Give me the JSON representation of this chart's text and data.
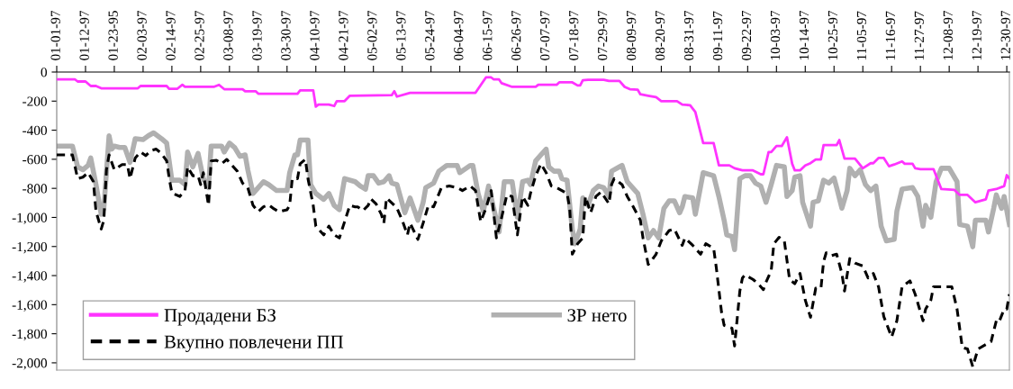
{
  "chart_data": {
    "type": "line",
    "xlim": [
      "1997-01-01",
      "1997-12-31"
    ],
    "ylim": [
      -2050,
      0
    ],
    "xticks": [
      {
        "value": "1997-01-01",
        "label": "01-01-97"
      },
      {
        "value": "1997-01-12",
        "label": "01-12-97"
      },
      {
        "value": "1997-01-23",
        "label": "01-23-95"
      },
      {
        "value": "1997-02-03",
        "label": "02-03-97"
      },
      {
        "value": "1997-02-14",
        "label": "02-14-97"
      },
      {
        "value": "1997-02-25",
        "label": "02-25-97"
      },
      {
        "value": "1997-03-08",
        "label": "03-08-97"
      },
      {
        "value": "1997-03-19",
        "label": "03-19-97"
      },
      {
        "value": "1997-03-30",
        "label": "03-30-97"
      },
      {
        "value": "1997-04-10",
        "label": "04-10-97"
      },
      {
        "value": "1997-04-21",
        "label": "04-21-97"
      },
      {
        "value": "1997-05-02",
        "label": "05-02-97"
      },
      {
        "value": "1997-05-13",
        "label": "05-13-97"
      },
      {
        "value": "1997-05-24",
        "label": "05-24-97"
      },
      {
        "value": "1997-06-04",
        "label": "06-04-97"
      },
      {
        "value": "1997-06-15",
        "label": "06-15-97"
      },
      {
        "value": "1997-06-26",
        "label": "06-26-97"
      },
      {
        "value": "1997-07-07",
        "label": "07-07-97"
      },
      {
        "value": "1997-07-18",
        "label": "07-18-97"
      },
      {
        "value": "1997-07-29",
        "label": "07-29-97"
      },
      {
        "value": "1997-08-09",
        "label": "08-09-97"
      },
      {
        "value": "1997-08-20",
        "label": "08-20-97"
      },
      {
        "value": "1997-08-31",
        "label": "08-31-97"
      },
      {
        "value": "1997-09-11",
        "label": "09-11-97"
      },
      {
        "value": "1997-09-22",
        "label": "09-22-97"
      },
      {
        "value": "1997-10-03",
        "label": "10-03-97"
      },
      {
        "value": "1997-10-14",
        "label": "10-14-97"
      },
      {
        "value": "1997-10-25",
        "label": "10-25-97"
      },
      {
        "value": "1997-11-05",
        "label": "11-05-97"
      },
      {
        "value": "1997-11-16",
        "label": "11-16-97"
      },
      {
        "value": "1997-11-27",
        "label": "11-27-97"
      },
      {
        "value": "1997-12-08",
        "label": "12-08-97"
      },
      {
        "value": "1997-12-19",
        "label": "12-19-97"
      },
      {
        "value": "1997-12-30",
        "label": "12-30-97"
      }
    ],
    "yticks": [
      0,
      -200,
      -400,
      -600,
      -800,
      {
        "value": -1000,
        "label": "-1,000"
      },
      {
        "value": -1200,
        "label": "-1,200"
      },
      {
        "value": -1400,
        "label": "-1,400"
      },
      {
        "value": -1600,
        "label": "-1,600"
      },
      {
        "value": -1800,
        "label": "-1,800"
      },
      {
        "value": -2000,
        "label": "-2,000"
      }
    ],
    "grid": false,
    "legend": "bottom left",
    "marker": "none",
    "series": [
      {
        "name": "Продадени БЗ",
        "color": "#ff33ff",
        "line_style": "solid",
        "x": [
          "1997-01-01",
          "1997-01-08",
          "1997-01-09",
          "1997-01-12",
          "1997-01-14",
          "1997-01-16",
          "1997-01-18",
          "1997-02-01",
          "1997-02-02",
          "1997-02-12",
          "1997-02-13",
          "1997-02-16",
          "1997-02-18",
          "1997-02-19",
          "1997-03-02",
          "1997-03-04",
          "1997-03-06",
          "1997-03-13",
          "1997-03-14",
          "1997-03-18",
          "1997-03-19",
          "1997-04-03",
          "1997-04-04",
          "1997-04-09",
          "1997-04-10",
          "1997-04-11",
          "1997-04-15",
          "1997-04-17",
          "1997-04-18",
          "1997-04-21",
          "1997-04-23",
          "1997-05-09",
          "1997-05-10",
          "1997-05-11",
          "1997-05-16",
          "1997-06-10",
          "1997-06-14",
          "1997-06-16",
          "1997-06-17",
          "1997-06-19",
          "1997-06-20",
          "1997-06-24",
          "1997-07-03",
          "1997-07-04",
          "1997-07-11",
          "1997-07-12",
          "1997-07-17",
          "1997-07-19",
          "1997-07-20",
          "1997-07-21",
          "1997-07-23",
          "1997-07-29",
          "1997-07-31",
          "1997-08-04",
          "1997-08-06",
          "1997-08-08",
          "1997-08-11",
          "1997-08-12",
          "1997-08-15",
          "1997-08-18",
          "1997-08-20",
          "1997-08-26",
          "1997-08-28",
          "1997-08-31",
          "1997-09-02",
          "1997-09-05",
          "1997-09-09",
          "1997-09-11",
          "1997-09-15",
          "1997-09-17",
          "1997-09-20",
          "1997-09-24",
          "1997-09-27",
          "1997-09-28",
          "1997-09-30",
          "1997-10-01",
          "1997-10-03",
          "1997-10-05",
          "1997-10-07",
          "1997-10-09",
          "1997-10-10",
          "1997-10-12",
          "1997-10-14",
          "1997-10-16",
          "1997-10-18",
          "1997-10-20",
          "1997-10-21",
          "1997-10-26",
          "1997-10-27",
          "1997-10-29",
          "1997-11-02",
          "1997-11-05",
          "1997-11-08",
          "1997-11-09",
          "1997-11-11",
          "1997-11-13",
          "1997-11-15",
          "1997-11-17",
          "1997-11-20",
          "1997-11-21",
          "1997-11-24",
          "1997-11-25",
          "1997-11-27",
          "1997-12-02",
          "1997-12-05",
          "1997-12-10",
          "1997-12-12",
          "1997-12-15",
          "1997-12-18",
          "1997-12-22",
          "1997-12-23",
          "1997-12-26",
          "1997-12-29",
          "1997-12-30",
          "1997-12-31"
        ],
        "values": [
          -51,
          -51,
          -65,
          -65,
          -96,
          -96,
          -112,
          -112,
          -96,
          -96,
          -116,
          -116,
          -88,
          -102,
          -102,
          -88,
          -118,
          -118,
          -132,
          -132,
          -149,
          -149,
          -126,
          -126,
          -238,
          -224,
          -224,
          -234,
          -200,
          -200,
          -163,
          -159,
          -132,
          -169,
          -143,
          -143,
          -37,
          -37,
          -51,
          -51,
          -77,
          -102,
          -102,
          -88,
          -88,
          -71,
          -71,
          -92,
          -92,
          -57,
          -53,
          -53,
          -61,
          -61,
          -102,
          -118,
          -122,
          -153,
          -163,
          -173,
          -200,
          -200,
          -224,
          -228,
          -275,
          -489,
          -489,
          -642,
          -642,
          -662,
          -676,
          -676,
          -703,
          -703,
          -550,
          -550,
          -509,
          -509,
          -448,
          -631,
          -676,
          -676,
          -642,
          -627,
          -601,
          -601,
          -503,
          -503,
          -468,
          -595,
          -595,
          -662,
          -627,
          -627,
          -591,
          -591,
          -648,
          -636,
          -615,
          -631,
          -631,
          -662,
          -668,
          -668,
          -805,
          -811,
          -845,
          -845,
          -896,
          -876,
          -815,
          -805,
          -784,
          -709,
          -733
        ]
      },
      {
        "name": "ЗР нето",
        "color": "#b0b0b0",
        "line_style": "solid",
        "x": [
          "1997-01-01",
          "1997-01-07",
          "1997-01-09",
          "1997-01-11",
          "1997-01-13",
          "1997-01-14",
          "1997-01-16",
          "1997-01-18",
          "1997-01-19",
          "1997-01-21",
          "1997-01-22",
          "1997-01-23",
          "1997-01-25",
          "1997-01-27",
          "1997-01-29",
          "1997-01-31",
          "1997-02-03",
          "1997-02-05",
          "1997-02-07",
          "1997-02-10",
          "1997-02-12",
          "1997-02-14",
          "1997-02-17",
          "1997-02-19",
          "1997-02-20",
          "1997-02-22",
          "1997-02-24",
          "1997-02-26",
          "1997-02-28",
          "1997-03-01",
          "1997-03-05",
          "1997-03-06",
          "1997-03-08",
          "1997-03-10",
          "1997-03-12",
          "1997-03-14",
          "1997-03-15",
          "1997-03-17",
          "1997-03-18",
          "1997-03-21",
          "1997-03-23",
          "1997-03-26",
          "1997-03-30",
          "1997-03-31",
          "1997-04-02",
          "1997-04-03",
          "1997-04-04",
          "1997-04-07",
          "1997-04-08",
          "1997-04-10",
          "1997-04-13",
          "1997-04-15",
          "1997-04-17",
          "1997-04-19",
          "1997-04-20",
          "1997-04-21",
          "1997-04-25",
          "1997-04-27",
          "1997-04-29",
          "1997-04-30",
          "1997-05-02",
          "1997-05-04",
          "1997-05-06",
          "1997-05-08",
          "1997-05-09",
          "1997-05-11",
          "1997-05-14",
          "1997-05-16",
          "1997-05-19",
          "1997-05-21",
          "1997-05-22",
          "1997-05-25",
          "1997-05-27",
          "1997-05-30",
          "1997-06-03",
          "1997-06-04",
          "1997-06-08",
          "1997-06-09",
          "1997-06-11",
          "1997-06-13",
          "1997-06-15",
          "1997-06-18",
          "1997-06-19",
          "1997-06-21",
          "1997-06-24",
          "1997-06-26",
          "1997-06-28",
          "1997-06-30",
          "1997-07-01",
          "1997-07-03",
          "1997-07-05",
          "1997-07-07",
          "1997-07-08",
          "1997-07-10",
          "1997-07-12",
          "1997-07-13",
          "1997-07-15",
          "1997-07-17",
          "1997-07-18",
          "1997-07-20",
          "1997-07-21",
          "1997-07-23",
          "1997-07-25",
          "1997-07-27",
          "1997-07-29",
          "1997-07-31",
          "1997-08-01",
          "1997-08-04",
          "1997-08-05",
          "1997-08-07",
          "1997-08-09",
          "1997-08-11",
          "1997-08-13",
          "1997-08-15",
          "1997-08-17",
          "1997-08-19",
          "1997-08-21",
          "1997-08-23",
          "1997-08-25",
          "1997-08-27",
          "1997-08-28",
          "1997-08-29",
          "1997-09-01",
          "1997-09-02",
          "1997-09-05",
          "1997-09-09",
          "1997-09-11",
          "1997-09-13",
          "1997-09-14",
          "1997-09-16",
          "1997-09-17",
          "1997-09-19",
          "1997-09-21",
          "1997-09-23",
          "1997-09-25",
          "1997-09-27",
          "1997-09-29",
          "1997-10-01",
          "1997-10-03",
          "1997-10-06",
          "1997-10-07",
          "1997-10-09",
          "1997-10-10",
          "1997-10-12",
          "1997-10-13",
          "1997-10-16",
          "1997-10-17",
          "1997-10-19",
          "1997-10-21",
          "1997-10-23",
          "1997-10-25",
          "1997-10-26",
          "1997-10-28",
          "1997-10-30",
          "1997-10-31",
          "1997-11-02",
          "1997-11-04",
          "1997-11-06",
          "1997-11-08",
          "1997-11-10",
          "1997-11-12",
          "1997-11-14",
          "1997-11-17",
          "1997-11-18",
          "1997-11-20",
          "1997-11-24",
          "1997-11-26",
          "1997-11-28",
          "1997-11-29",
          "1997-12-01",
          "1997-12-03",
          "1997-12-05",
          "1997-12-08",
          "1997-12-11",
          "1997-12-12",
          "1997-12-15",
          "1997-12-17",
          "1997-12-18",
          "1997-12-22",
          "1997-12-23",
          "1997-12-25",
          "1997-12-26",
          "1997-12-28",
          "1997-12-29",
          "1997-12-31"
        ],
        "values": [
          -509,
          -509,
          -652,
          -672,
          -642,
          -591,
          -774,
          -978,
          -937,
          -438,
          -530,
          -509,
          -519,
          -519,
          -621,
          -458,
          -464,
          -438,
          -418,
          -458,
          -489,
          -744,
          -744,
          -774,
          -550,
          -652,
          -560,
          -733,
          -795,
          -509,
          -509,
          -550,
          -489,
          -519,
          -580,
          -570,
          -672,
          -835,
          -815,
          -754,
          -774,
          -815,
          -815,
          -692,
          -570,
          -570,
          -468,
          -468,
          -774,
          -835,
          -876,
          -835,
          -917,
          -947,
          -835,
          -733,
          -754,
          -784,
          -805,
          -713,
          -713,
          -764,
          -754,
          -713,
          -764,
          -774,
          -968,
          -866,
          -1019,
          -896,
          -795,
          -764,
          -682,
          -642,
          -642,
          -692,
          -642,
          -642,
          -835,
          -958,
          -784,
          -1019,
          -1100,
          -754,
          -754,
          -999,
          -754,
          -744,
          -774,
          -611,
          -570,
          -530,
          -652,
          -682,
          -682,
          -733,
          -744,
          -1080,
          -1181,
          -1080,
          -866,
          -917,
          -815,
          -784,
          -795,
          -856,
          -682,
          -652,
          -642,
          -754,
          -795,
          -835,
          -978,
          -1141,
          -1090,
          -1141,
          -937,
          -886,
          -886,
          -968,
          -927,
          -856,
          -866,
          -978,
          -692,
          -713,
          -856,
          -1019,
          -1120,
          -1131,
          -1222,
          -733,
          -713,
          -713,
          -764,
          -784,
          -896,
          -774,
          -642,
          -652,
          -856,
          -815,
          -723,
          -713,
          -896,
          -1060,
          -896,
          -886,
          -744,
          -764,
          -729,
          -795,
          -937,
          -815,
          -662,
          -713,
          -672,
          -774,
          -815,
          -784,
          -1060,
          -1161,
          -1151,
          -958,
          -805,
          -795,
          -856,
          -1060,
          -917,
          -999,
          -754,
          -662,
          -662,
          -754,
          -1049,
          -1060,
          -1202,
          -1019,
          -1019,
          -1100,
          -937,
          -845,
          -937,
          -856,
          -1049
        ]
      },
      {
        "name": "Вкупно повлечени ПП",
        "color": "#000000",
        "line_style": "dashed",
        "x": [
          "1997-01-01",
          "1997-01-07",
          "1997-01-09",
          "1997-01-11",
          "1997-01-13",
          "1997-01-15",
          "1997-01-16",
          "1997-01-18",
          "1997-01-19",
          "1997-01-20",
          "1997-01-21",
          "1997-01-23",
          "1997-01-26",
          "1997-01-28",
          "1997-01-29",
          "1997-01-31",
          "1997-02-02",
          "1997-02-04",
          "1997-02-06",
          "1997-02-08",
          "1997-02-10",
          "1997-02-12",
          "1997-02-13",
          "1997-02-14",
          "1997-02-17",
          "1997-02-19",
          "1997-02-20",
          "1997-02-22",
          "1997-02-24",
          "1997-02-25",
          "1997-02-26",
          "1997-02-28",
          "1997-03-01",
          "1997-03-03",
          "1997-03-05",
          "1997-03-07",
          "1997-03-09",
          "1997-03-11",
          "1997-03-13",
          "1997-03-15",
          "1997-03-17",
          "1997-03-19",
          "1997-03-21",
          "1997-03-23",
          "1997-03-25",
          "1997-03-27",
          "1997-03-30",
          "1997-03-31",
          "1997-04-01",
          "1997-04-03",
          "1997-04-04",
          "1997-04-06",
          "1997-04-07",
          "1997-04-09",
          "1997-04-10",
          "1997-04-13",
          "1997-04-15",
          "1997-04-17",
          "1997-04-19",
          "1997-04-21",
          "1997-04-23",
          "1997-04-25",
          "1997-04-26",
          "1997-04-28",
          "1997-04-30",
          "1997-05-01",
          "1997-05-03",
          "1997-05-05",
          "1997-05-06",
          "1997-05-07",
          "1997-05-10",
          "1997-05-11",
          "1997-05-13",
          "1997-05-15",
          "1997-05-16",
          "1997-05-19",
          "1997-05-21",
          "1997-05-23",
          "1997-05-25",
          "1997-05-28",
          "1997-05-31",
          "1997-06-03",
          "1997-06-05",
          "1997-06-08",
          "1997-06-10",
          "1997-06-12",
          "1997-06-14",
          "1997-06-16",
          "1997-06-18",
          "1997-06-20",
          "1997-06-22",
          "1997-06-24",
          "1997-06-26",
          "1997-06-28",
          "1997-06-30",
          "1997-07-01",
          "1997-07-03",
          "1997-07-05",
          "1997-07-07",
          "1997-07-09",
          "1997-07-11",
          "1997-07-15",
          "1997-07-16",
          "1997-07-17",
          "1997-07-19",
          "1997-07-21",
          "1997-07-22",
          "1997-07-24",
          "1997-07-26",
          "1997-07-28",
          "1997-07-31",
          "1997-08-01",
          "1997-08-02",
          "1997-08-05",
          "1997-08-07",
          "1997-08-09",
          "1997-08-12",
          "1997-08-13",
          "1997-08-15",
          "1997-08-16",
          "1997-08-18",
          "1997-08-20",
          "1997-08-23",
          "1997-08-25",
          "1997-08-28",
          "1997-08-29",
          "1997-09-01",
          "1997-09-04",
          "1997-09-06",
          "1997-09-09",
          "1997-09-10",
          "1997-09-12",
          "1997-09-13",
          "1997-09-16",
          "1997-09-17",
          "1997-09-19",
          "1997-09-20",
          "1997-09-21",
          "1997-09-24",
          "1997-09-26",
          "1997-09-28",
          "1997-09-29",
          "1997-10-01",
          "1997-10-02",
          "1997-10-04",
          "1997-10-06",
          "1997-10-08",
          "1997-10-10",
          "1997-10-12",
          "1997-10-14",
          "1997-10-16",
          "1997-10-18",
          "1997-10-20",
          "1997-10-21",
          "1997-10-22",
          "1997-10-24",
          "1997-10-26",
          "1997-10-28",
          "1997-10-29",
          "1997-10-31",
          "1997-11-02",
          "1997-11-05",
          "1997-11-07",
          "1997-11-09",
          "1997-11-11",
          "1997-11-13",
          "1997-11-16",
          "1997-11-18",
          "1997-11-20",
          "1997-11-23",
          "1997-11-25",
          "1997-11-28",
          "1997-11-29",
          "1997-12-01",
          "1997-12-02",
          "1997-12-05",
          "1997-12-09",
          "1997-12-11",
          "1997-12-13",
          "1997-12-15",
          "1997-12-17",
          "1997-12-19",
          "1997-12-22",
          "1997-12-24",
          "1997-12-26",
          "1997-12-27",
          "1997-12-29",
          "1997-12-30",
          "1997-12-31"
        ],
        "values": [
          -570,
          -570,
          -733,
          -723,
          -692,
          -754,
          -957,
          -1080,
          -1019,
          -672,
          -570,
          -672,
          -636,
          -636,
          -733,
          -591,
          -550,
          -575,
          -540,
          -530,
          -560,
          -611,
          -733,
          -831,
          -856,
          -815,
          -652,
          -713,
          -713,
          -774,
          -692,
          -917,
          -611,
          -607,
          -631,
          -601,
          -642,
          -682,
          -764,
          -795,
          -917,
          -961,
          -927,
          -913,
          -941,
          -961,
          -947,
          -917,
          -733,
          -733,
          -631,
          -601,
          -733,
          -917,
          -1060,
          -1120,
          -1060,
          -1120,
          -1141,
          -1029,
          -917,
          -927,
          -927,
          -953,
          -917,
          -872,
          -906,
          -978,
          -1039,
          -866,
          -917,
          -937,
          -1019,
          -1120,
          -1039,
          -1151,
          -1039,
          -917,
          -927,
          -795,
          -784,
          -795,
          -815,
          -784,
          -815,
          -1029,
          -937,
          -815,
          -1141,
          -999,
          -845,
          -856,
          -1120,
          -856,
          -917,
          -835,
          -713,
          -631,
          -692,
          -784,
          -795,
          -835,
          -937,
          -1253,
          -1181,
          -1141,
          -856,
          -968,
          -856,
          -825,
          -906,
          -774,
          -733,
          -774,
          -856,
          -917,
          -1019,
          -1141,
          -1324,
          -1304,
          -1253,
          -1161,
          -1090,
          -1080,
          -1192,
          -1141,
          -1192,
          -1253,
          -1181,
          -1212,
          -1344,
          -1650,
          -1742,
          -1762,
          -1884,
          -1507,
          -1416,
          -1395,
          -1426,
          -1456,
          -1497,
          -1446,
          -1365,
          -1181,
          -1137,
          -1161,
          -1426,
          -1456,
          -1385,
          -1568,
          -1687,
          -1487,
          -1487,
          -1304,
          -1243,
          -1263,
          -1253,
          -1385,
          -1507,
          -1283,
          -1314,
          -1334,
          -1416,
          -1385,
          -1477,
          -1681,
          -1823,
          -1711,
          -1477,
          -1436,
          -1528,
          -1711,
          -1630,
          -1568,
          -1477,
          -1477,
          -1477,
          -1630,
          -1895,
          -1905,
          -2027,
          -1905,
          -1874,
          -1854,
          -1711,
          -1721,
          -1630,
          -1630,
          -1528
        ]
      }
    ]
  }
}
